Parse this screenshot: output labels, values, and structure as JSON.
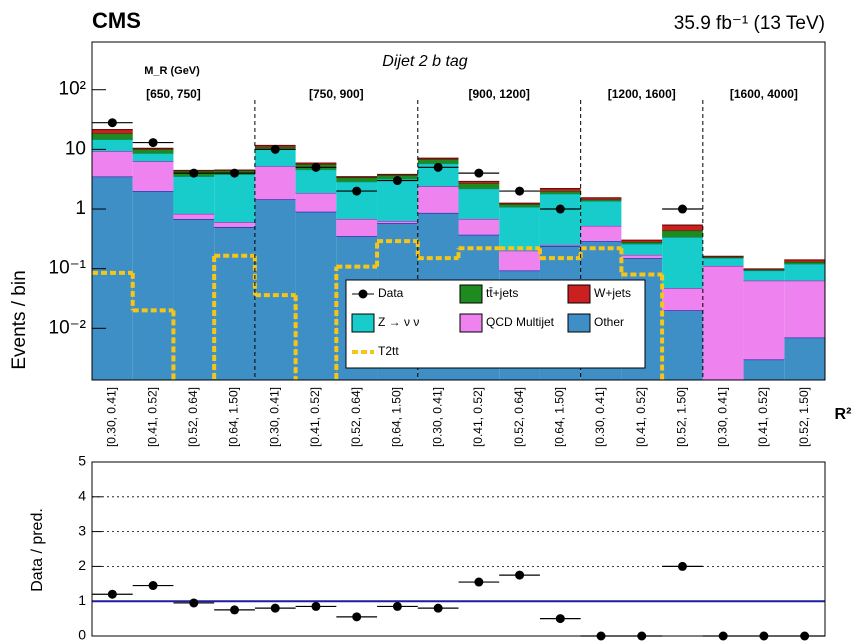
{
  "chart_data": [
    {
      "type": "bar",
      "stacked": true,
      "log_y": true,
      "title": "CMS",
      "lumi": "35.9 fb⁻¹ (13 TeV)",
      "subtitle": "Dijet 2 b tag",
      "group_title": "M_R (GeV)",
      "y_label": "Events / bin",
      "x_label": "R²",
      "groups": [
        {
          "label": "[650, 750]",
          "categories": [
            "[0.30, 0.41]",
            "[0.41, 0.52]",
            "[0.52, 0.64]",
            "[0.64, 1.50]"
          ]
        },
        {
          "label": "[750, 900]",
          "categories": [
            "[0.30, 0.41]",
            "[0.41, 0.52]",
            "[0.52, 0.64]",
            "[0.64, 1.50]"
          ]
        },
        {
          "label": "[900, 1200]",
          "categories": [
            "[0.30, 0.41]",
            "[0.41, 0.52]",
            "[0.52, 0.64]",
            "[0.64, 1.50]"
          ]
        },
        {
          "label": "[1200, 1600]",
          "categories": [
            "[0.30, 0.41]",
            "[0.41, 0.52]",
            "[0.52, 1.50]"
          ]
        },
        {
          "label": "[1600, 4000]",
          "categories": [
            "[0.30, 0.41]",
            "[0.41, 0.52]",
            "[0.52, 1.50]"
          ]
        }
      ],
      "series": [
        {
          "name": "Other",
          "kind": "stack",
          "color": "#3d8fc6",
          "edge": "#1f1fa8",
          "values": [
            3.5,
            2.0,
            0.68,
            0.5,
            1.45,
            0.9,
            0.35,
            0.58,
            0.86,
            0.37,
            0.093,
            0.24,
            0.29,
            0.15,
            0.02,
            0.001,
            0.003,
            0.007
          ]
        },
        {
          "name": "QCD Multijet",
          "kind": "stack",
          "color": "#ee82ee",
          "edge": "#a02cb0",
          "values": [
            5.8,
            4.3,
            0.15,
            0.1,
            3.75,
            0.95,
            0.33,
            0.05,
            1.54,
            0.31,
            0.107,
            0.01,
            0.23,
            0.02,
            0.027,
            0.11,
            0.06,
            0.056
          ]
        },
        {
          "name": "Z → ν ν",
          "kind": "stack",
          "color": "#19cccc",
          "edge": "#0f8f8f",
          "values": [
            5.4,
            2.3,
            2.7,
            3.2,
            4.8,
            2.75,
            2.2,
            2.57,
            3.4,
            1.52,
            0.88,
            1.55,
            0.84,
            0.09,
            0.29,
            0.04,
            0.03,
            0.057
          ]
        },
        {
          "name": "tt̄+jets",
          "kind": "stack",
          "color": "#1f8a1f",
          "edge": "#0c4f0c",
          "values": [
            3.8,
            1.4,
            0.8,
            0.6,
            1.0,
            1.0,
            0.5,
            0.5,
            1.0,
            0.5,
            0.12,
            0.2,
            0.08,
            0.02,
            0.1,
            0.005,
            0.003,
            0.01
          ]
        },
        {
          "name": "W+jets",
          "kind": "stack",
          "color": "#cc1f1f",
          "edge": "#6e0c0c",
          "values": [
            3.0,
            0.4,
            0.1,
            0.1,
            0.6,
            0.3,
            0.1,
            0.1,
            0.3,
            0.2,
            0.05,
            0.2,
            0.1,
            0.02,
            0.1,
            0.005,
            0.003,
            0.01
          ]
        },
        {
          "name": "Data",
          "kind": "points",
          "color": "#000000",
          "values": [
            28,
            13,
            4,
            4,
            10,
            5,
            2,
            3,
            5,
            4,
            2,
            1,
            null,
            null,
            1,
            null,
            null,
            null
          ]
        },
        {
          "name": "T2tt",
          "kind": "step",
          "color": "#f5c518",
          "values": [
            0.085,
            0.02,
            0.001,
            0.165,
            0.036,
            0.001,
            0.108,
            0.29,
            0.15,
            0.22,
            0.22,
            0.15,
            0.22,
            0.08,
            0.001,
            0.001,
            0.001,
            0.001
          ]
        }
      ],
      "ylim": [
        0.00136,
        631
      ],
      "yticks": [
        {
          "value": 0.01,
          "label": "10⁻²"
        },
        {
          "value": 0.1,
          "label": "10⁻¹"
        },
        1,
        10,
        {
          "value": 100,
          "label": "10²"
        }
      ]
    },
    {
      "type": "scatter",
      "y_label": "Data / pred.",
      "values": [
        1.2,
        1.45,
        0.95,
        0.75,
        0.8,
        0.85,
        0.55,
        0.85,
        0.8,
        1.55,
        1.75,
        0.5,
        0,
        0,
        2.0,
        0,
        0,
        0
      ],
      "color": "#000000",
      "ref_line": 1,
      "ref_color": "#1f1f9e",
      "ylim": [
        0,
        5
      ],
      "yticks": [
        0,
        1,
        2,
        3,
        4,
        5
      ],
      "grid": true
    }
  ]
}
